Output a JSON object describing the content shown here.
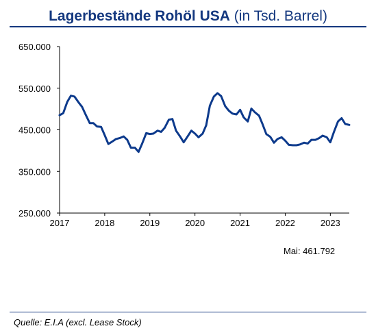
{
  "header": {
    "title_bold": "Lagerbestände Rohöl USA",
    "title_normal": "(in Tsd. Barrel)"
  },
  "annotation": "Mai: 461.792",
  "source": "Quelle: E.I.A (excl. Lease Stock)",
  "colors": {
    "accent": "#14387f",
    "line": "#0d3a8c",
    "text": "#000000"
  },
  "chart_data": {
    "type": "line",
    "title": "Lagerbestände Rohöl USA (in Tsd. Barrel)",
    "xlabel": "",
    "ylabel": "",
    "xlim": [
      2017,
      2023.42
    ],
    "ylim": [
      250000,
      650000
    ],
    "yticks": [
      250000,
      350000,
      450000,
      550000,
      650000
    ],
    "ytick_labels": [
      "250.000",
      "350.000",
      "450.000",
      "550.000",
      "650.000"
    ],
    "xticks": [
      2017,
      2018,
      2019,
      2020,
      2021,
      2022,
      2023
    ],
    "xtick_labels": [
      "2017",
      "2018",
      "2019",
      "2020",
      "2021",
      "2022",
      "2023"
    ],
    "grid": false,
    "legend": "none",
    "series": [
      {
        "x": [
          2017.0,
          2017.08,
          2017.17,
          2017.25,
          2017.33,
          2017.42,
          2017.5,
          2017.58,
          2017.67,
          2017.75,
          2017.83,
          2017.92,
          2018.0,
          2018.08,
          2018.17,
          2018.25,
          2018.33,
          2018.42,
          2018.5,
          2018.58,
          2018.67,
          2018.75,
          2018.83,
          2018.92,
          2019.0,
          2019.08,
          2019.17,
          2019.25,
          2019.33,
          2019.42,
          2019.5,
          2019.58,
          2019.67,
          2019.75,
          2019.83,
          2019.92,
          2020.0,
          2020.08,
          2020.17,
          2020.25,
          2020.33,
          2020.42,
          2020.5,
          2020.58,
          2020.67,
          2020.75,
          2020.83,
          2020.92,
          2021.0,
          2021.08,
          2021.17,
          2021.25,
          2021.33,
          2021.42,
          2021.5,
          2021.58,
          2021.67,
          2021.75,
          2021.83,
          2021.92,
          2022.0,
          2022.08,
          2022.17,
          2022.25,
          2022.33,
          2022.42,
          2022.5,
          2022.58,
          2022.67,
          2022.75,
          2022.83,
          2022.92,
          2023.0,
          2023.08,
          2023.17,
          2023.25,
          2023.33,
          2023.42
        ],
        "values": [
          485000,
          490000,
          517000,
          532000,
          530000,
          516000,
          505000,
          486000,
          466000,
          466000,
          458000,
          457000,
          437000,
          416000,
          422000,
          428000,
          430000,
          434000,
          426000,
          407000,
          407000,
          397000,
          417000,
          442000,
          440000,
          441000,
          448000,
          445000,
          455000,
          474000,
          476000,
          448000,
          434000,
          420000,
          433000,
          448000,
          441000,
          432000,
          441000,
          461000,
          508000,
          530000,
          538000,
          531000,
          507000,
          496000,
          489000,
          487000,
          498000,
          480000,
          470000,
          501000,
          492000,
          484000,
          463000,
          440000,
          433000,
          419000,
          428000,
          432000,
          424000,
          414000,
          413000,
          413000,
          415000,
          419000,
          417000,
          426000,
          426000,
          430000,
          436000,
          432000,
          420000,
          445000,
          470000,
          478000,
          464000,
          461792
        ]
      }
    ]
  }
}
